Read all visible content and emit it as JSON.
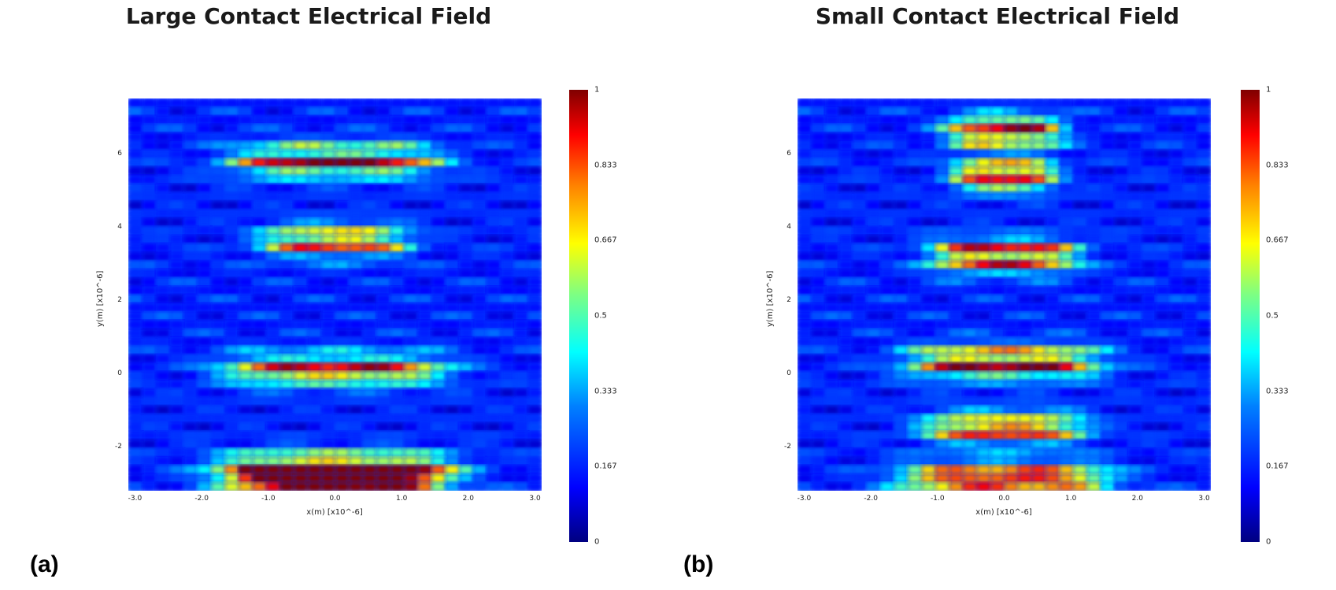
{
  "chart_data": [
    {
      "type": "heatmap",
      "title": "Large Contact Electrical Field",
      "panel_label": "(a)",
      "xlabel": "x(m) [x10^-6]",
      "ylabel": "y(m) [x10^-6]",
      "x_ticks": [
        "-3.0",
        "-2.0",
        "-1.0",
        "0.0",
        "1.0",
        "2.0",
        "3.0"
      ],
      "y_ticks": [
        "6",
        "4",
        "2",
        "0",
        "-2"
      ],
      "xlim": [
        -3.1,
        3.1
      ],
      "ylim": [
        -3.2,
        7.5
      ],
      "colorbar_ticks": [
        "1",
        "0.833",
        "0.667",
        "0.5",
        "0.333",
        "0.167",
        "0"
      ],
      "colorbar_range": [
        0,
        1
      ],
      "hotspots": [
        {
          "y": 5.8,
          "halfwidth": 1.4,
          "peak": 0.88
        },
        {
          "y": 3.6,
          "halfwidth": 1.0,
          "peak": 0.8
        },
        {
          "y": 0.1,
          "halfwidth": 1.5,
          "peak": 0.82
        },
        {
          "y": -2.6,
          "halfwidth": 1.6,
          "peak": 0.9
        },
        {
          "y": -3.0,
          "halfwidth": 1.4,
          "peak": 0.95
        }
      ]
    },
    {
      "type": "heatmap",
      "title": "Small Contact Electrical Field",
      "panel_label": "(b)",
      "xlabel": "x(m) [x10^-6]",
      "ylabel": "y(m) [x10^-6]",
      "x_ticks": [
        "-3.0",
        "-2.0",
        "-1.0",
        "0.0",
        "1.0",
        "2.0",
        "3.0"
      ],
      "y_ticks": [
        "6",
        "4",
        "2",
        "0",
        "-2"
      ],
      "xlim": [
        -3.1,
        3.1
      ],
      "ylim": [
        -3.2,
        7.5
      ],
      "colorbar_ticks": [
        "1",
        "0.833",
        "0.667",
        "0.5",
        "0.333",
        "0.167",
        "0"
      ],
      "colorbar_range": [
        0,
        1
      ],
      "hotspots": [
        {
          "y": 6.6,
          "halfwidth": 0.8,
          "peak": 0.9
        },
        {
          "y": 5.4,
          "halfwidth": 0.7,
          "peak": 0.92
        },
        {
          "y": 3.2,
          "halfwidth": 1.0,
          "peak": 0.97
        },
        {
          "y": 0.3,
          "halfwidth": 1.3,
          "peak": 0.95
        },
        {
          "y": -1.5,
          "halfwidth": 1.1,
          "peak": 0.85
        },
        {
          "y": -2.9,
          "halfwidth": 1.4,
          "peak": 1.0
        }
      ]
    }
  ]
}
